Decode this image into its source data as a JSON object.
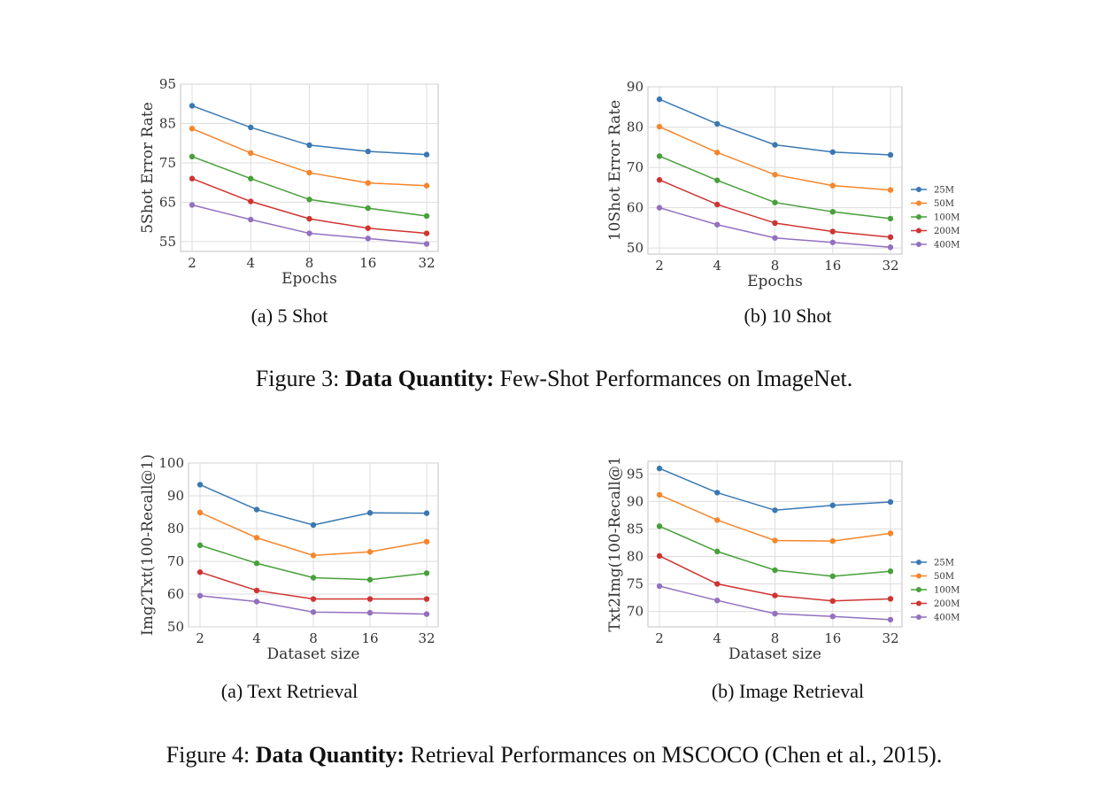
{
  "colors": {
    "25M": "#3a78b3",
    "50M": "#f5862b",
    "100M": "#47a03a",
    "200M": "#cf3431",
    "400M": "#9370bf"
  },
  "chart_data": [
    {
      "type": "line",
      "subcaption": "(a) 5 Shot",
      "xlabel": "Epochs",
      "ylabel": "5Shot Error Rate",
      "categories": [
        "2",
        "4",
        "8",
        "16",
        "32"
      ],
      "yticks": [
        55,
        65,
        75,
        85,
        95
      ],
      "ylim": [
        52.5,
        95
      ],
      "grid": true,
      "legend": "none",
      "series": [
        {
          "name": "25M",
          "values": [
            89.5,
            84.0,
            79.5,
            77.9,
            77.1
          ]
        },
        {
          "name": "50M",
          "values": [
            83.7,
            77.5,
            72.5,
            69.9,
            69.2
          ]
        },
        {
          "name": "100M",
          "values": [
            76.6,
            71.0,
            65.7,
            63.5,
            61.5
          ]
        },
        {
          "name": "200M",
          "values": [
            71.0,
            65.2,
            60.8,
            58.4,
            57.1
          ]
        },
        {
          "name": "400M",
          "values": [
            64.3,
            60.6,
            57.1,
            55.8,
            54.4
          ]
        }
      ]
    },
    {
      "type": "line",
      "subcaption": "(b) 10 Shot",
      "xlabel": "Epochs",
      "ylabel": "10Shot Error Rate",
      "categories": [
        "2",
        "4",
        "8",
        "16",
        "32"
      ],
      "yticks": [
        50,
        60,
        70,
        80,
        90
      ],
      "ylim": [
        48.5,
        90
      ],
      "grid": true,
      "legend": "right",
      "series": [
        {
          "name": "25M",
          "values": [
            86.9,
            80.8,
            75.6,
            73.8,
            73.1
          ]
        },
        {
          "name": "50M",
          "values": [
            80.1,
            73.7,
            68.2,
            65.5,
            64.4
          ]
        },
        {
          "name": "100M",
          "values": [
            72.8,
            66.8,
            61.3,
            59.0,
            57.3
          ]
        },
        {
          "name": "200M",
          "values": [
            66.9,
            60.8,
            56.2,
            54.1,
            52.7
          ]
        },
        {
          "name": "400M",
          "values": [
            60.0,
            55.8,
            52.5,
            51.4,
            50.2
          ]
        }
      ]
    },
    {
      "type": "line",
      "subcaption": "(a) Text Retrieval",
      "xlabel": "Dataset size",
      "ylabel": "Img2Txt(100-Recall@1)",
      "categories": [
        "2",
        "4",
        "8",
        "16",
        "32"
      ],
      "yticks": [
        50,
        60,
        70,
        80,
        90,
        100
      ],
      "ylim": [
        50,
        100
      ],
      "grid": true,
      "legend": "none",
      "series": [
        {
          "name": "25M",
          "values": [
            93.4,
            85.8,
            81.1,
            84.8,
            84.7
          ]
        },
        {
          "name": "50M",
          "values": [
            84.9,
            77.2,
            71.8,
            72.9,
            76.0
          ]
        },
        {
          "name": "100M",
          "values": [
            74.9,
            69.4,
            65.0,
            64.4,
            66.4
          ]
        },
        {
          "name": "200M",
          "values": [
            66.7,
            61.1,
            58.5,
            58.5,
            58.5
          ]
        },
        {
          "name": "400M",
          "values": [
            59.5,
            57.7,
            54.5,
            54.3,
            53.9
          ]
        }
      ]
    },
    {
      "type": "line",
      "subcaption": "(b) Image Retrieval",
      "xlabel": "Dataset size",
      "ylabel": "Txt2Img(100-Recall@1",
      "categories": [
        "2",
        "4",
        "8",
        "16",
        "32"
      ],
      "yticks": [
        70,
        75,
        80,
        85,
        90,
        95
      ],
      "ylim": [
        67.2,
        97.3
      ],
      "grid": true,
      "legend": "right",
      "series": [
        {
          "name": "25M",
          "values": [
            96.0,
            91.6,
            88.4,
            89.3,
            89.9
          ]
        },
        {
          "name": "50M",
          "values": [
            91.2,
            86.6,
            82.9,
            82.8,
            84.2
          ]
        },
        {
          "name": "100M",
          "values": [
            85.5,
            80.9,
            77.5,
            76.4,
            77.3
          ]
        },
        {
          "name": "200M",
          "values": [
            80.1,
            75.0,
            72.9,
            71.9,
            72.3
          ]
        },
        {
          "name": "400M",
          "values": [
            74.6,
            72.0,
            69.6,
            69.1,
            68.5
          ]
        }
      ]
    }
  ],
  "figure3": {
    "label": "Figure 3: ",
    "bold": "Data Quantity:",
    "rest": " Few-Shot Performances on ImageNet."
  },
  "figure4": {
    "label": "Figure 4: ",
    "bold": "Data Quantity:",
    "rest": " Retrieval Performances on MSCOCO (Chen et al., 2015)."
  }
}
